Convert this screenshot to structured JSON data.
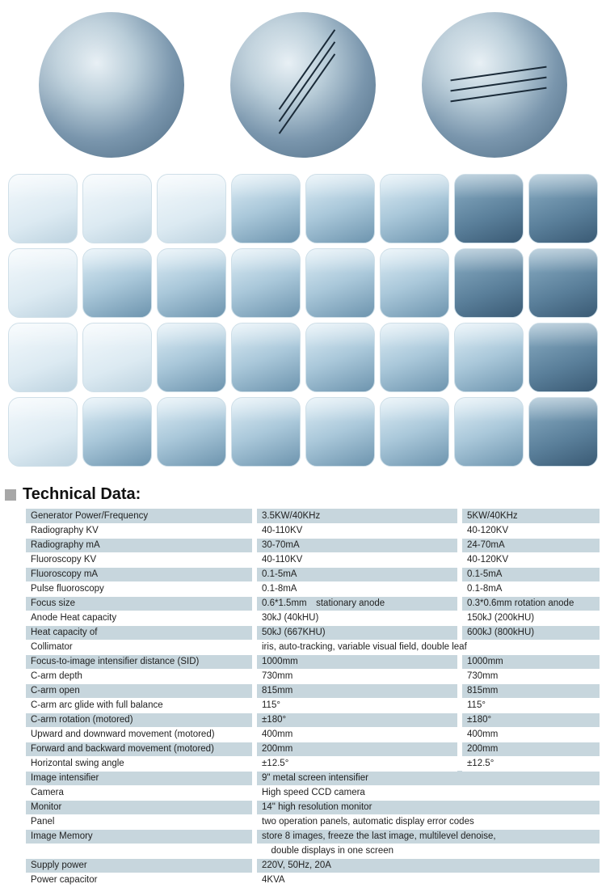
{
  "heading": "Technical Data:",
  "table": {
    "columns": [
      "label",
      "colA",
      "colB"
    ],
    "rows": [
      {
        "band": true,
        "label": "Generator Power/Frequency",
        "a": "3.5KW/40KHz",
        "b": "5KW/40KHz"
      },
      {
        "band": false,
        "label": "Radiography KV",
        "a": "40-110KV",
        "b": "40-120KV"
      },
      {
        "band": true,
        "label": "Radiography mA",
        "a": "30-70mA",
        "b": "24-70mA"
      },
      {
        "band": false,
        "label": "Fluoroscopy KV",
        "a": "40-110KV",
        "b": "40-120KV"
      },
      {
        "band": true,
        "label": "Fluoroscopy mA",
        "a": "0.1-5mA",
        "b": "0.1-5mA"
      },
      {
        "band": false,
        "label": "Pulse fluoroscopy",
        "a": "0.1-8mA",
        "b": "0.1-8mA"
      },
      {
        "band": true,
        "label": "Focus size",
        "a": "0.6*1.5mm stationary anode",
        "b": "0.3*0.6mm rotation anode"
      },
      {
        "band": false,
        "label": "Anode Heat capacity",
        "a": "30kJ (40kHU)",
        "b": "150kJ (200kHU)"
      },
      {
        "band": true,
        "label": "Heat capacity of",
        "a": "50kJ (667KHU)",
        "b": "600kJ (800kHU)"
      },
      {
        "band": false,
        "label": "Collimator",
        "a": "iris, auto-tracking, variable visual field, double leaf",
        "b": null,
        "span": true
      },
      {
        "band": true,
        "label": "Focus-to-image intensifier distance (SID)",
        "a": "1000mm",
        "b": "1000mm"
      },
      {
        "band": false,
        "label": "C-arm depth",
        "a": "730mm",
        "b": "730mm"
      },
      {
        "band": true,
        "label": "C-arm open",
        "a": "815mm",
        "b": "815mm"
      },
      {
        "band": false,
        "label": "C-arm arc glide with full balance",
        "a": "115°",
        "b": "115°"
      },
      {
        "band": true,
        "label": "C-arm rotation (motored)",
        "a": "±180°",
        "b": "±180°"
      },
      {
        "band": false,
        "label": "Upward and downward movement (motored)",
        "a": "400mm",
        "b": "400mm"
      },
      {
        "band": true,
        "label": "Forward and backward movement (motored)",
        "a": "200mm",
        "b": "200mm"
      },
      {
        "band": false,
        "label": "Horizontal swing angle",
        "a": "±12.5°",
        "b": "±12.5°"
      },
      {
        "band": true,
        "label": "Image intensifier",
        "a": "9\" metal screen intensifier",
        "b": null,
        "span": true
      },
      {
        "band": false,
        "label": "Camera",
        "a": "High speed CCD camera",
        "b": null,
        "span": true
      },
      {
        "band": true,
        "label": "Monitor",
        "a": "14\" high resolution monitor",
        "b": null,
        "span": true
      },
      {
        "band": false,
        "label": "Panel",
        "a": "two operation panels, automatic display error codes",
        "b": null,
        "span": true
      },
      {
        "band": true,
        "label": "Image Memory",
        "a": "store 8 images, freeze the last image, multilevel denoise,",
        "b": null,
        "span": true
      },
      {
        "band": false,
        "label": "",
        "a": " double displays in one screen",
        "b": null,
        "span": true
      },
      {
        "band": true,
        "label": "Supply power",
        "a": "220V, 50Hz, 20A",
        "b": null,
        "span": true
      },
      {
        "band": false,
        "label": "Power capacitor",
        "a": "4KVA",
        "b": null,
        "span": true
      }
    ]
  },
  "tiles": {
    "count": 32,
    "variants": [
      "light",
      "light",
      "light",
      "",
      "",
      "",
      "dark",
      "dark",
      "light",
      "",
      "",
      "",
      "",
      "",
      "dark",
      "dark",
      "light",
      "light",
      "",
      "",
      "",
      "",
      "",
      "dark",
      "light",
      "",
      "",
      "",
      "",
      "",
      "",
      "dark"
    ]
  }
}
